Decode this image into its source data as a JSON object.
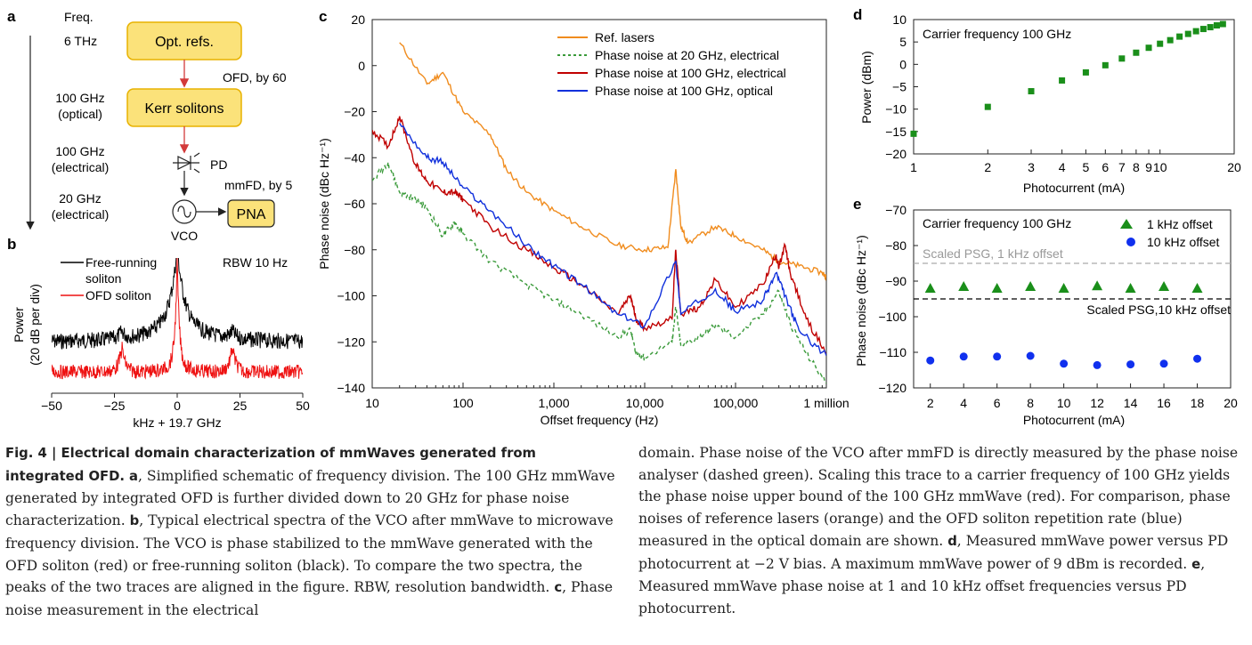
{
  "colors": {
    "orange": "#f08c1e",
    "green": "#3a9a3a",
    "darkred": "#c00000",
    "blue": "#1030dc",
    "black": "#000000",
    "red": "#ee1111",
    "box_fill": "#fbe27a",
    "box_stroke": "#e8b200",
    "arrow_red": "#d33a3a",
    "marker_green": "#1a8f1a",
    "marker_blue": "#1030ee",
    "gray_dash": "#aaaaaa"
  },
  "panel_labels": {
    "a": "a",
    "b": "b",
    "c": "c",
    "d": "d",
    "e": "e"
  },
  "panel_a": {
    "freq_header": "Freq.",
    "f1": "6 THz",
    "f2_line1": "100 GHz",
    "f2_line2": "(optical)",
    "f3_line1": "100 GHz",
    "f3_line2": "(electrical)",
    "f4_line1": "20 GHz",
    "f4_line2": "(electrical)",
    "box1": "Opt. refs.",
    "box2": "Kerr solitons",
    "box3": "PNA",
    "ofd_label": "OFD, by 60",
    "pd_label": "PD",
    "mmfd_label": "mmFD, by 5",
    "vco_label": "VCO"
  },
  "panel_b": {
    "ylabel_line1": "Power",
    "ylabel_line2": "(20 dB per div)",
    "xlabel": "kHz + 19.7 GHz",
    "xticks": [
      "−50",
      "−25",
      "0",
      "25",
      "50"
    ],
    "rbw": "RBW 10 Hz",
    "legend_free_line1": "Free-running",
    "legend_free_line2": "soliton",
    "legend_ofd": "OFD soliton"
  },
  "chart_data": [
    {
      "panel": "c",
      "type": "line",
      "xscale": "log",
      "xlabel": "Offset frequency (Hz)",
      "ylabel": "Phase noise (dBc Hz⁻¹)",
      "xlim": [
        10,
        1000000
      ],
      "ylim": [
        -140,
        20
      ],
      "xtick_labels": [
        "10",
        "100",
        "1,000",
        "10,000",
        "100,000",
        "1 million"
      ],
      "ytick_labels": [
        "20",
        "0",
        "−20",
        "−40",
        "−60",
        "−80",
        "−100",
        "−120",
        "−140"
      ],
      "series": [
        {
          "name": "Ref. lasers",
          "style": "solid",
          "color": "orange",
          "x": [
            20,
            40,
            60,
            100,
            200,
            300,
            500,
            1000,
            2000,
            5000,
            10000,
            18000,
            22000,
            25000,
            30000,
            60000,
            100000,
            200000,
            300000,
            500000,
            900000,
            1000000
          ],
          "y": [
            10,
            -8,
            -3,
            -20,
            -30,
            -45,
            -55,
            -63,
            -70,
            -78,
            -80,
            -79,
            -45,
            -70,
            -77,
            -70,
            -74,
            -80,
            -85,
            -87,
            -90,
            -92
          ]
        },
        {
          "name": "Phase noise at 20 GHz, electrical",
          "style": "dashed",
          "color": "green",
          "x": [
            10,
            15,
            20,
            30,
            40,
            60,
            80,
            100,
            200,
            500,
            1000,
            2000,
            5000,
            7000,
            8000,
            10000,
            20000,
            22000,
            25000,
            40000,
            60000,
            100000,
            200000,
            300000,
            400000,
            600000,
            1000000
          ],
          "y": [
            -50,
            -42,
            -55,
            -58,
            -62,
            -74,
            -68,
            -73,
            -85,
            -95,
            -102,
            -108,
            -118,
            -115,
            -125,
            -127,
            -120,
            -105,
            -122,
            -118,
            -113,
            -118,
            -108,
            -98,
            -112,
            -125,
            -138
          ]
        },
        {
          "name": "Phase noise at 100 GHz, electrical",
          "style": "solid",
          "color": "darkred",
          "x": [
            10,
            15,
            20,
            30,
            40,
            60,
            80,
            100,
            200,
            500,
            1000,
            2000,
            5000,
            7000,
            8000,
            10000,
            20000,
            22000,
            25000,
            40000,
            60000,
            100000,
            200000,
            280000,
            300000,
            350000,
            400000,
            600000,
            1000000
          ],
          "y": [
            -28,
            -35,
            -22,
            -43,
            -50,
            -55,
            -55,
            -58,
            -70,
            -80,
            -88,
            -95,
            -108,
            -100,
            -110,
            -114,
            -110,
            -80,
            -108,
            -105,
            -93,
            -105,
            -95,
            -82,
            -88,
            -78,
            -90,
            -110,
            -125
          ]
        },
        {
          "name": "Phase noise at 100 GHz, optical",
          "style": "solid",
          "color": "blue",
          "x": [
            20,
            40,
            60,
            100,
            200,
            500,
            1000,
            2000,
            5000,
            10000,
            22000,
            25000,
            60000,
            100000,
            200000,
            280000,
            350000,
            500000,
            1000000
          ],
          "y": [
            -25,
            -40,
            -42,
            -53,
            -63,
            -78,
            -87,
            -95,
            -108,
            -113,
            -85,
            -108,
            -97,
            -107,
            -102,
            -90,
            -100,
            -115,
            -126
          ]
        }
      ],
      "legend_position": "top-center"
    },
    {
      "panel": "d",
      "type": "scatter",
      "xscale": "log",
      "title": "Carrier frequency 100 GHz",
      "xlabel": "Photocurrent (mA)",
      "ylabel": "Power (dBm)",
      "xlim": [
        1,
        20
      ],
      "ylim": [
        -20,
        10
      ],
      "xtick_labels": [
        "1",
        "2",
        "3",
        "4",
        "5",
        "6",
        "7",
        "8",
        "9",
        "10",
        "20"
      ],
      "ytick_labels": [
        "10",
        "5",
        "0",
        "−5",
        "−10",
        "−15",
        "−20"
      ],
      "x": [
        1,
        2,
        3,
        4,
        5,
        6,
        7,
        8,
        9,
        10,
        11,
        12,
        13,
        14,
        15,
        16,
        17,
        18
      ],
      "y": [
        -15.5,
        -9.5,
        -6,
        -3.6,
        -1.8,
        -0.2,
        1.3,
        2.6,
        3.7,
        4.6,
        5.4,
        6.2,
        6.8,
        7.4,
        7.9,
        8.3,
        8.7,
        9.0
      ]
    },
    {
      "panel": "e",
      "type": "scatter",
      "title": "Carrier frequency 100 GHz",
      "xlabel": "Photocurrent (mA)",
      "ylabel": "Phase noise (dBc Hz⁻¹)",
      "xlim": [
        1,
        20
      ],
      "ylim": [
        -120,
        -70
      ],
      "xtick_labels": [
        "2",
        "4",
        "6",
        "8",
        "10",
        "12",
        "14",
        "16",
        "18",
        "20"
      ],
      "ytick_labels": [
        "−70",
        "−80",
        "−90",
        "−100",
        "−110",
        "−120"
      ],
      "series": [
        {
          "name": "1 kHz offset",
          "marker": "triangle",
          "x": [
            2,
            4,
            6,
            8,
            10,
            12,
            14,
            16,
            18
          ],
          "y": [
            -92,
            -91.5,
            -92,
            -91.5,
            -92,
            -91.3,
            -92,
            -91.5,
            -92
          ]
        },
        {
          "name": "10 kHz offset",
          "marker": "circle",
          "x": [
            2,
            4,
            6,
            8,
            10,
            12,
            14,
            16,
            18
          ],
          "y": [
            -112.3,
            -111.2,
            -111.2,
            -111,
            -113.2,
            -113.6,
            -113.4,
            -113.2,
            -111.8
          ]
        }
      ],
      "reference_lines": [
        {
          "name": "Scaled PSG, 1 kHz offset",
          "y": -85,
          "color": "gray_dash"
        },
        {
          "name": "Scaled PSG,10 kHz offset",
          "y": -95,
          "color": "black"
        }
      ]
    }
  ],
  "caption": {
    "fig_label": "Fig. 4 | Electrical domain characterization of mmWaves generated from integrated OFD.",
    "a_label": "a",
    "a_text": ", Simplified schematic of frequency division. The 100 GHz mmWave generated by integrated OFD is further divided down to 20 GHz for phase noise characterization.",
    "b_label": "b",
    "b_text": ", Typical electrical spectra of the VCO after mmWave to microwave frequency division. The VCO is phase stabilized to the mmWave generated with the OFD soliton (red) or free-running soliton (black). To compare the two spectra, the peaks of the two traces are aligned in the figure. RBW, resolution bandwidth.",
    "c_label": "c",
    "c_text": ", Phase noise measurement in the electrical domain. Phase noise of the VCO after mmFD is directly measured by the phase noise analyser (dashed green). Scaling this trace to a carrier frequency of 100 GHz yields the phase noise upper bound of the 100 GHz mmWave (red). For comparison, phase noises of reference lasers (orange) and the OFD soliton repetition rate (blue) measured in the optical domain are shown.",
    "d_label": "d",
    "d_text": ", Measured mmWave power versus PD photocurrent at −2 V bias. A maximum mmWave power of 9 dBm is recorded.",
    "e_label": "e",
    "e_text": ", Measured mmWave phase noise at 1 and 10 kHz offset frequencies versus PD photocurrent."
  }
}
